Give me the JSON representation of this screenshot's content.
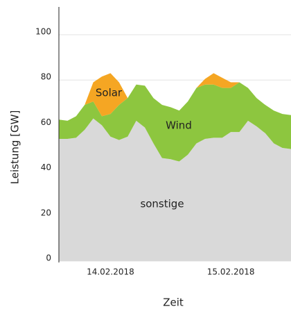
{
  "chart_data": {
    "type": "stacked_area",
    "ylabel": "Leistung [GW]",
    "xlabel": "Zeit",
    "categories": [
      null,
      null,
      null,
      null,
      null,
      null,
      "14.02.2018",
      null,
      null,
      null,
      null,
      null,
      null,
      null,
      null,
      null,
      null,
      null,
      null,
      null,
      "15.02.2018",
      null,
      null,
      null,
      null,
      null,
      null,
      null
    ],
    "series": [
      {
        "name": "sonstige",
        "color": "#d9d9d9",
        "values": [
          54,
          54,
          54.5,
          58,
          63,
          60,
          55,
          53.5,
          55,
          62,
          59,
          52,
          45.5,
          45,
          44,
          47,
          52,
          54,
          54.5,
          54.5,
          57,
          57,
          62,
          59.5,
          56.5,
          52,
          50,
          49.5
        ]
      },
      {
        "name": "Wind",
        "color": "#8dc63f",
        "values": [
          8.5,
          8,
          9.5,
          11,
          7.5,
          4,
          10,
          15.5,
          17,
          16,
          18.5,
          20,
          23.5,
          23,
          22.5,
          23.5,
          24.5,
          24,
          23.5,
          22,
          19.5,
          22,
          14.5,
          12.5,
          12.5,
          14.5,
          15,
          15
        ]
      },
      {
        "name": "Solar",
        "color": "#f5a623",
        "values": [
          0,
          0,
          0,
          0,
          8.5,
          17.5,
          18,
          10,
          0,
          0,
          0,
          0,
          0,
          0,
          0,
          0,
          0,
          2.5,
          5,
          4.5,
          2.5,
          0,
          0,
          0,
          0,
          0,
          0,
          0
        ]
      }
    ],
    "ylim": [
      0,
      100
    ],
    "yticks": [
      0,
      20,
      40,
      60,
      80,
      100
    ],
    "grid": true
  }
}
